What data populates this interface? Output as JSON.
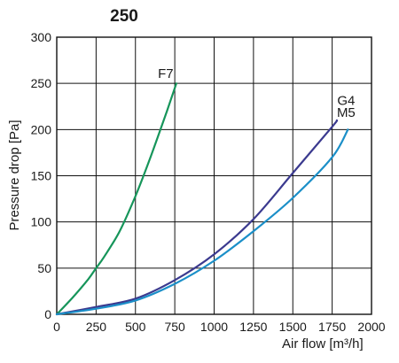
{
  "chart_data": {
    "type": "line",
    "title": "250",
    "xlabel": "Air flow [m³/h]",
    "ylabel": "Pressure drop [Pa]",
    "xlim": [
      0,
      2000
    ],
    "ylim": [
      0,
      300
    ],
    "xticks": [
      0,
      250,
      500,
      750,
      1000,
      1250,
      1500,
      1750,
      2000
    ],
    "yticks": [
      0,
      50,
      100,
      150,
      200,
      250,
      300
    ],
    "grid": true,
    "legend": "none",
    "series": [
      {
        "name": "F7",
        "color": "#16955a",
        "x": [
          0,
          100,
          200,
          250,
          300,
          400,
          500,
          600,
          700,
          760
        ],
        "y": [
          0,
          18,
          38,
          50,
          62,
          90,
          128,
          172,
          220,
          250
        ]
      },
      {
        "name": "M5",
        "color": "#3b3a8f",
        "x": [
          0,
          250,
          500,
          750,
          1000,
          1250,
          1500,
          1750,
          1780
        ],
        "y": [
          0,
          8,
          17,
          37,
          65,
          103,
          153,
          203,
          210
        ]
      },
      {
        "name": "G4",
        "color": "#1b8fc8",
        "x": [
          0,
          250,
          500,
          750,
          1000,
          1250,
          1500,
          1750,
          1850
        ],
        "y": [
          0,
          6,
          15,
          33,
          58,
          90,
          126,
          170,
          200
        ]
      }
    ]
  }
}
